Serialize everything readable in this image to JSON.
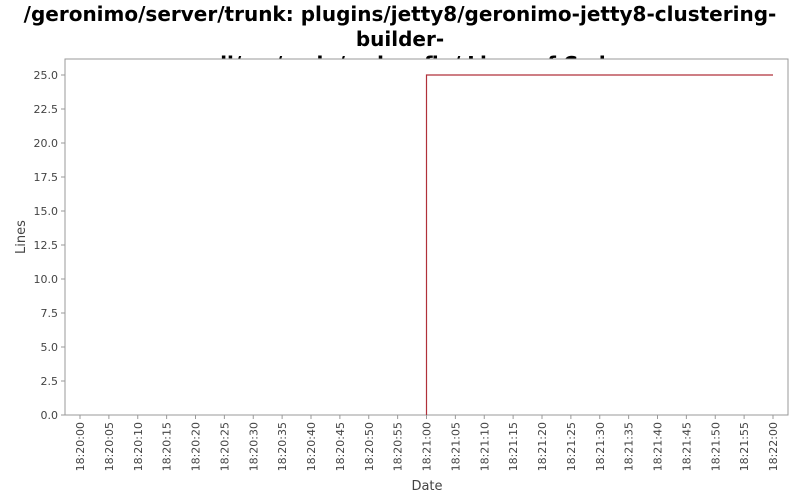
{
  "chart_data": {
    "type": "line",
    "title_line1": "/geronimo/server/trunk: plugins/jetty8/geronimo-jetty8-clustering-builder-",
    "title_line2": "wadi/src/main/xsdconfig/ Lines of Code",
    "xlabel": "Date",
    "ylabel": "Lines",
    "ylim": [
      0,
      25
    ],
    "y_ticks": [
      "0.0",
      "2.5",
      "5.0",
      "7.5",
      "10.0",
      "12.5",
      "15.0",
      "17.5",
      "20.0",
      "22.5",
      "25.0"
    ],
    "x_ticks": [
      "18:20:00",
      "18:20:05",
      "18:20:10",
      "18:20:15",
      "18:20:20",
      "18:20:25",
      "18:20:30",
      "18:20:35",
      "18:20:40",
      "18:20:45",
      "18:20:50",
      "18:20:55",
      "18:21:00",
      "18:21:05",
      "18:21:10",
      "18:21:15",
      "18:21:20",
      "18:21:25",
      "18:21:30",
      "18:21:35",
      "18:21:40",
      "18:21:45",
      "18:21:50",
      "18:21:55",
      "18:22:00"
    ],
    "series": [
      {
        "color": "#b0303a",
        "step": true,
        "points": [
          {
            "x": "18:21:00",
            "y": 0
          },
          {
            "x": "18:21:00",
            "y": 25
          },
          {
            "x": "18:22:00",
            "y": 25
          }
        ]
      }
    ],
    "grid": false
  }
}
